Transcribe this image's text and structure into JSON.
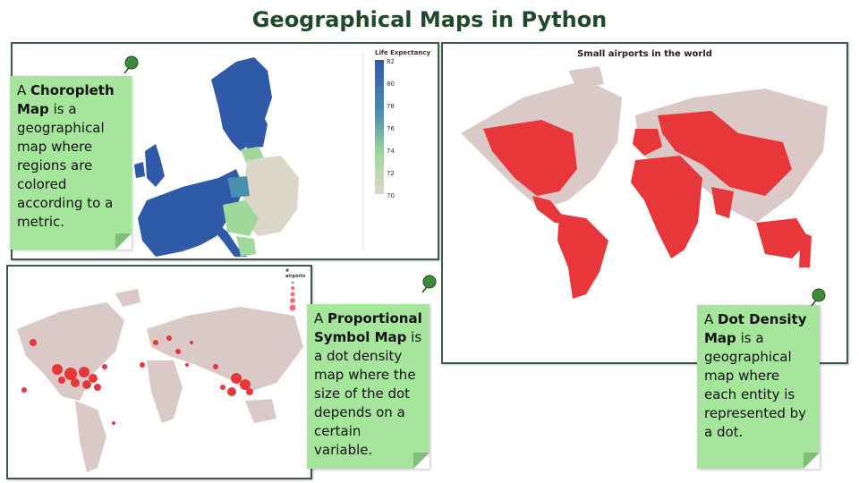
{
  "page_title": "Geographical Maps in Python",
  "choropleth": {
    "legend_title": "Life Expectancy",
    "ticks": [
      "82",
      "80",
      "78",
      "76",
      "74",
      "72",
      "70"
    ],
    "note_bold": "Choropleth Map",
    "note_prefix": "A ",
    "note_rest": " is a geographical map where regions are colored according to a metric."
  },
  "proportional": {
    "legend_title": "# airports",
    "note_prefix": "A ",
    "note_bold": "Proportional Symbol Map",
    "note_rest": " is a dot density map where the size of the dot depends on a certain variable."
  },
  "density": {
    "map_title": "Small airports in the world",
    "note_prefix": "A ",
    "note_bold": "Dot Density Map",
    "note_rest": " is a geographical map where each entity is represented by a dot."
  },
  "colors": {
    "choropleth_high": "#2f5aa8",
    "choropleth_low": "#dcd6c8",
    "land": "#dbc9c7",
    "dot": "#e8373b",
    "note_bg": "#a6e59c",
    "title": "#1e4a2a"
  }
}
